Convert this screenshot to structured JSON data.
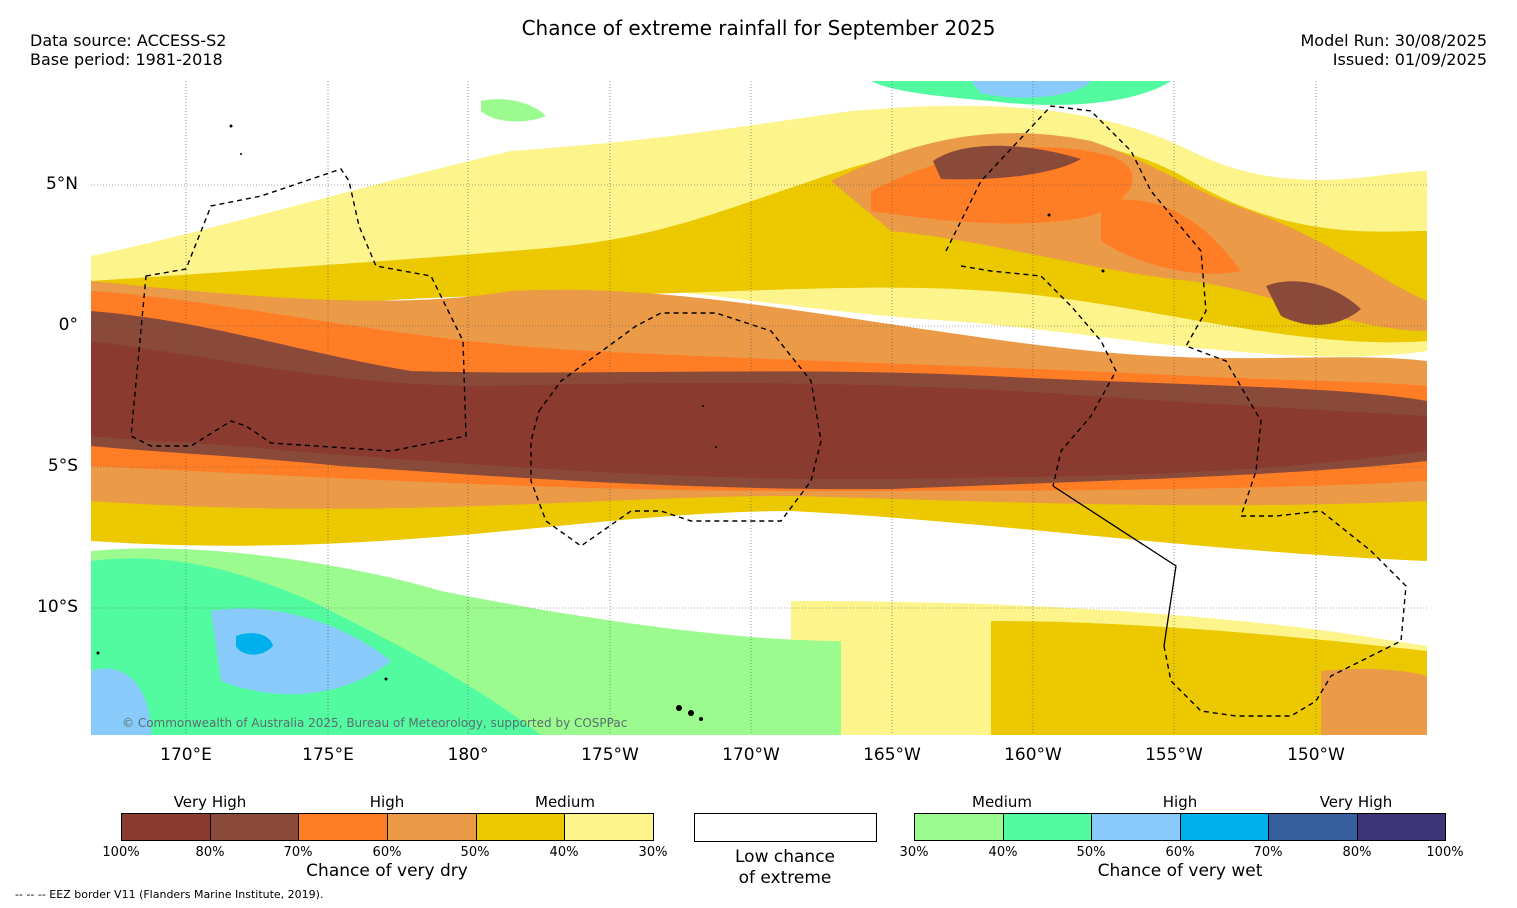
{
  "title": "Chance of extreme rainfall for September 2025",
  "meta": {
    "data_source": "Data source: ACCESS-S2",
    "base_period": "Base period: 1981-2018",
    "model_run": "Model Run: 30/08/2025",
    "issued": "Issued: 01/09/2025"
  },
  "map": {
    "lat_labels": [
      "5°N",
      "0°",
      "5°S",
      "10°S"
    ],
    "lon_labels": [
      "170°E",
      "175°E",
      "180°",
      "175°W",
      "170°W",
      "165°W",
      "160°W",
      "155°W",
      "150°W"
    ],
    "copyright": "© Commonwealth of Australia 2025, Bureau of Meteorology, supported by COSPPac",
    "eez_note": "--  --  -- EEZ border V11 (Flanders Marine Institute, 2019)."
  },
  "legend": {
    "dry": {
      "headers": [
        "Very High",
        "High",
        "Medium"
      ],
      "ticks": [
        "100%",
        "80%",
        "70%",
        "60%",
        "50%",
        "40%",
        "30%"
      ],
      "colors": [
        "#8b3a30",
        "#8a4a3a",
        "#ff7d25",
        "#eb9a47",
        "#ebc800",
        "#fdf58c"
      ],
      "title": "Chance of very dry"
    },
    "none": {
      "title_line1": "Low chance",
      "title_line2": "of extreme"
    },
    "wet": {
      "headers": [
        "Medium",
        "High",
        "Very High"
      ],
      "ticks": [
        "30%",
        "40%",
        "50%",
        "60%",
        "70%",
        "80%",
        "100%"
      ],
      "colors": [
        "#9cfb8e",
        "#52fb9f",
        "#88cbfb",
        "#00b0ec",
        "#365f9e",
        "#3d3676"
      ],
      "title": "Chance of very wet"
    }
  }
}
